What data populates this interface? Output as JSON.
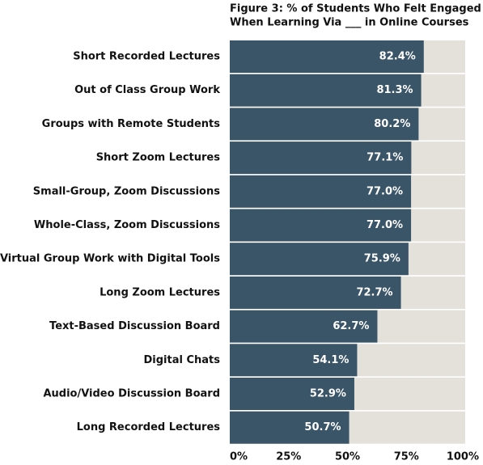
{
  "chart_data": {
    "type": "bar",
    "orientation": "horizontal",
    "title": [
      "Figure 3: % of Students Who Felt Engaged",
      "When Learning Via ___ in Online Courses"
    ],
    "categories": [
      "Short Recorded Lectures",
      "Out of Class Group Work",
      "Groups with Remote Students",
      "Short Zoom Lectures",
      "Small-Group, Zoom Discussions",
      "Whole-Class, Zoom Discussions",
      "Virtual Group Work with Digital Tools",
      "Long Zoom Lectures",
      "Text-Based Discussion Board",
      "Digital Chats",
      "Audio/Video Discussion Board",
      "Long Recorded Lectures"
    ],
    "values": [
      82.4,
      81.3,
      80.2,
      77.1,
      77.0,
      77.0,
      75.9,
      72.7,
      62.7,
      54.1,
      52.9,
      50.7
    ],
    "value_labels": [
      "82.4%",
      "81.3%",
      "80.2%",
      "77.1%",
      "77.0%",
      "77.0%",
      "75.9%",
      "72.7%",
      "62.7%",
      "54.1%",
      "52.9%",
      "50.7%"
    ],
    "color": "#3a5468",
    "track_color": "#e4e0da",
    "xlim": [
      0,
      100
    ],
    "xticks": [
      {
        "value": 0,
        "label": "0%"
      },
      {
        "value": 25,
        "label": "25%"
      },
      {
        "value": 50,
        "label": "50%"
      },
      {
        "value": 75,
        "label": "75%"
      },
      {
        "value": 100,
        "label": "100%"
      }
    ]
  }
}
